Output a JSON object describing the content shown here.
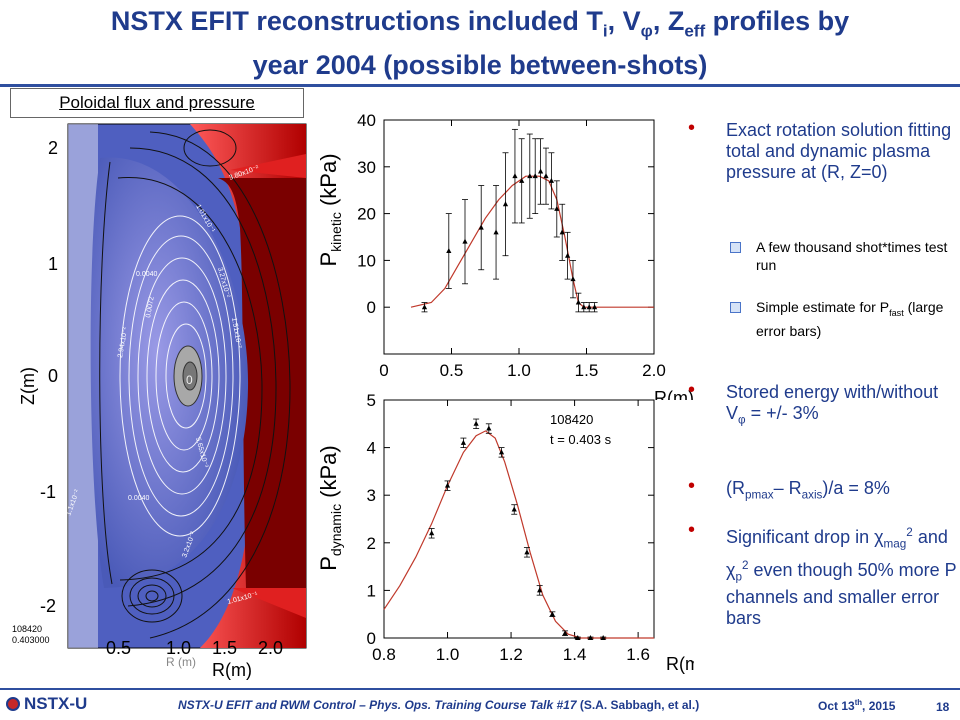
{
  "slide": {
    "title_line1_parts": [
      "NSTX EFIT reconstructions included T",
      "i",
      ", V",
      "φ",
      ", Z",
      "eff",
      " profiles by"
    ],
    "title_line2": "year 2004 (possible between-shots)",
    "flux_panel_label": "Poloidal flux and pressure"
  },
  "flux_panel": {
    "z_axis_label": "Z(m)",
    "r_axis_label": "R(m)",
    "r_axis_faint_label": "R (m)",
    "z_ticks": [
      "2",
      "1",
      "0",
      "-1",
      "-2"
    ],
    "r_ticks": [
      "0.5",
      "1.0",
      "1.5",
      "2.0"
    ],
    "shot": "108420",
    "time": "0.403000",
    "contour_labels": [
      "0.0040",
      "0.0072",
      "2.94x10⁻²",
      "1.01x10⁻¹",
      "3.27x10⁻²",
      "1.51x10⁻²",
      "5.65x10⁻³",
      "0.0040",
      "1.1x10⁻²",
      "3.2x10⁻²",
      "1.01x10⁻¹",
      "3.80x10⁻²",
      "0"
    ],
    "colors": {
      "core": "#7c7cd8",
      "outer": "#4f5fc0",
      "wall": "#7a0000",
      "edge": "#e02020"
    }
  },
  "chart_data": [
    {
      "type": "scatter",
      "title": "",
      "ylabel_main": "P",
      "ylabel_sub": "kinetic",
      "ylabel_unit": " (kPa)",
      "xlabel": "R(m)",
      "xlim": [
        0,
        2.0
      ],
      "ylim": [
        -10,
        40
      ],
      "x_ticks": [
        "0",
        "0.5",
        "1.0",
        "1.5",
        "2.0"
      ],
      "y_ticks": [
        "0",
        "10",
        "20",
        "30",
        "40"
      ],
      "points": [
        {
          "x": 0.3,
          "y": 0,
          "err": 1
        },
        {
          "x": 0.48,
          "y": 12,
          "err": 8
        },
        {
          "x": 0.6,
          "y": 14,
          "err": 9
        },
        {
          "x": 0.72,
          "y": 17,
          "err": 9
        },
        {
          "x": 0.83,
          "y": 16,
          "err": 10
        },
        {
          "x": 0.9,
          "y": 22,
          "err": 11
        },
        {
          "x": 0.97,
          "y": 28,
          "err": 10
        },
        {
          "x": 1.02,
          "y": 27,
          "err": 9
        },
        {
          "x": 1.08,
          "y": 28,
          "err": 9
        },
        {
          "x": 1.12,
          "y": 28,
          "err": 8
        },
        {
          "x": 1.16,
          "y": 29,
          "err": 7
        },
        {
          "x": 1.2,
          "y": 28,
          "err": 6
        },
        {
          "x": 1.24,
          "y": 27,
          "err": 6
        },
        {
          "x": 1.28,
          "y": 21,
          "err": 6
        },
        {
          "x": 1.32,
          "y": 16,
          "err": 6
        },
        {
          "x": 1.36,
          "y": 11,
          "err": 5
        },
        {
          "x": 1.4,
          "y": 6,
          "err": 4
        },
        {
          "x": 1.44,
          "y": 1,
          "err": 2
        },
        {
          "x": 1.48,
          "y": 0,
          "err": 1
        },
        {
          "x": 1.52,
          "y": 0,
          "err": 1
        },
        {
          "x": 1.56,
          "y": 0,
          "err": 1
        }
      ],
      "fit": {
        "x": [
          0.2,
          0.35,
          0.45,
          0.55,
          0.65,
          0.75,
          0.85,
          0.95,
          1.05,
          1.15,
          1.22,
          1.28,
          1.34,
          1.4,
          1.44,
          1.48,
          1.6,
          2.0
        ],
        "y": [
          0,
          1,
          4,
          9,
          14,
          19,
          23,
          26,
          28,
          28,
          27,
          23,
          15,
          6,
          1,
          0,
          0,
          0
        ]
      },
      "fit_color": "#c0392b"
    },
    {
      "type": "scatter",
      "title": "",
      "ylabel_main": "P",
      "ylabel_sub": "dynamic",
      "ylabel_unit": " (kPa)",
      "xlabel": "R(m)",
      "xlim": [
        0.8,
        1.65
      ],
      "ylim": [
        0,
        5
      ],
      "x_ticks": [
        "0.8",
        "1.0",
        "1.2",
        "1.4",
        "1.6"
      ],
      "y_ticks": [
        "0",
        "1",
        "2",
        "3",
        "4",
        "5"
      ],
      "annotation_shot": "108420",
      "annotation_time": "t = 0.403 s",
      "points": [
        {
          "x": 0.95,
          "y": 2.2,
          "err": 0.1
        },
        {
          "x": 1.0,
          "y": 3.2,
          "err": 0.1
        },
        {
          "x": 1.05,
          "y": 4.1,
          "err": 0.1
        },
        {
          "x": 1.09,
          "y": 4.5,
          "err": 0.1
        },
        {
          "x": 1.13,
          "y": 4.4,
          "err": 0.1
        },
        {
          "x": 1.17,
          "y": 3.9,
          "err": 0.1
        },
        {
          "x": 1.21,
          "y": 2.7,
          "err": 0.1
        },
        {
          "x": 1.25,
          "y": 1.8,
          "err": 0.1
        },
        {
          "x": 1.29,
          "y": 1.0,
          "err": 0.1
        },
        {
          "x": 1.33,
          "y": 0.5,
          "err": 0.05
        },
        {
          "x": 1.37,
          "y": 0.1,
          "err": 0.05
        },
        {
          "x": 1.41,
          "y": 0.0,
          "err": 0.02
        },
        {
          "x": 1.45,
          "y": 0.0,
          "err": 0.02
        },
        {
          "x": 1.49,
          "y": 0.0,
          "err": 0.02
        }
      ],
      "fit": {
        "x": [
          0.8,
          0.85,
          0.9,
          0.95,
          1.0,
          1.05,
          1.09,
          1.12,
          1.15,
          1.18,
          1.22,
          1.26,
          1.3,
          1.34,
          1.38,
          1.42,
          1.5,
          1.65
        ],
        "y": [
          0.6,
          1.1,
          1.7,
          2.4,
          3.2,
          3.9,
          4.25,
          4.35,
          4.2,
          3.7,
          2.8,
          1.8,
          0.9,
          0.35,
          0.08,
          0.0,
          0.0,
          0.0
        ]
      },
      "fit_color": "#c0392b"
    }
  ],
  "bullets": [
    {
      "id": "exact",
      "text": "Exact rotation solution fitting total and dynamic plasma pressure at (R, Z=0)"
    },
    {
      "id": "thousand",
      "text": "A few thousand shot*times test run"
    },
    {
      "id": "pfast_pre",
      "text": "Simple estimate for P"
    },
    {
      "id": "pfast_sub",
      "text": "fast"
    },
    {
      "id": "pfast_post",
      "text": " (large error bars)"
    },
    {
      "id": "stored_pre",
      "text": "Stored energy with/without V"
    },
    {
      "id": "stored_sym",
      "text": "φ"
    },
    {
      "id": "stored_post",
      "text": " = +/- 3%"
    },
    {
      "id": "rp_a",
      "text": "(R"
    },
    {
      "id": "rp_sub1",
      "text": "pmax"
    },
    {
      "id": "rp_b",
      "text": "– R"
    },
    {
      "id": "rp_sub2",
      "text": "axis"
    },
    {
      "id": "rp_c",
      "text": ")/a = 8%"
    },
    {
      "id": "chi_a",
      "text": "Significant drop in "
    },
    {
      "id": "chi_sym1",
      "text": "χ"
    },
    {
      "id": "chi_sub1",
      "text": "mag"
    },
    {
      "id": "chi_sup1",
      "text": "2"
    },
    {
      "id": "chi_b",
      "text": " and "
    },
    {
      "id": "chi_sym2",
      "text": "χ"
    },
    {
      "id": "chi_sub2",
      "text": "p"
    },
    {
      "id": "chi_sup2",
      "text": "2"
    },
    {
      "id": "chi_c",
      "text": " even though 50% more P channels and smaller error bars"
    }
  ],
  "footer": {
    "logo": "NSTX-U",
    "talk": "NSTX-U EFIT and RWM Control – Phys. Ops. Training Course Talk #17",
    "author": " (S.A. Sabbagh, et al.)",
    "date_pre": "Oct 13",
    "date_sup": "th",
    "date_post": ", 2015",
    "page": "18"
  }
}
